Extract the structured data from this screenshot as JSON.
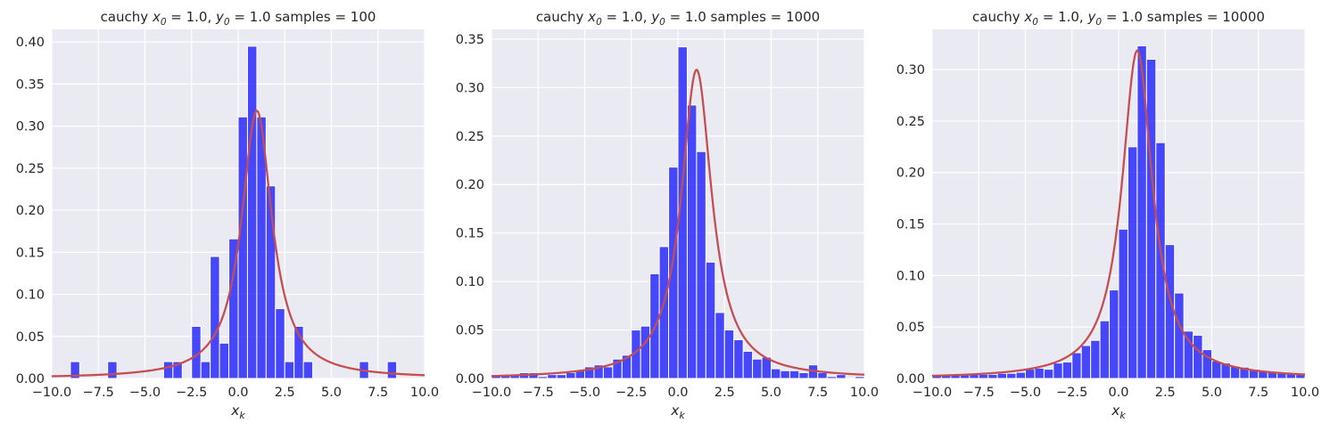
{
  "colors": {
    "bar": "#0000ff",
    "curve": "#c44e52",
    "axes_bg": "#eaeaf2",
    "grid": "#ffffff"
  },
  "chart_data": [
    {
      "type": "bar",
      "title": {
        "prefix": "cauchy ",
        "x0_label": "x",
        "x0_sub": "0",
        "x0_value": " = 1.0, ",
        "y0_label": "y",
        "y0_sub": "0",
        "y0_value": " = 1.0  samples = 100"
      },
      "xlabel": {
        "base": "x",
        "sub": "k"
      },
      "xlim": [
        -10,
        10
      ],
      "ylim": [
        0,
        0.415
      ],
      "xticks": [
        -10,
        -7.5,
        -5,
        -2.5,
        0,
        2.5,
        5,
        7.5,
        10
      ],
      "xtick_labels": [
        "−10.0",
        "−7.5",
        "−5.0",
        "−2.5",
        "0.0",
        "2.5",
        "5.0",
        "7.5",
        "10.0"
      ],
      "yticks": [
        0,
        0.05,
        0.1,
        0.15,
        0.2,
        0.25,
        0.3,
        0.35,
        0.4
      ],
      "ytick_labels": [
        "0.00",
        "0.05",
        "0.10",
        "0.15",
        "0.20",
        "0.25",
        "0.30",
        "0.35",
        "0.40"
      ],
      "bin_width": 0.5,
      "bin_starts": [
        -9,
        -7,
        -4,
        -3.5,
        -2.5,
        -2,
        -1.5,
        -1,
        -0.5,
        0,
        0.5,
        1,
        1.5,
        2,
        2.5,
        3,
        3.5,
        6.5,
        8
      ],
      "values": [
        0.02,
        0.02,
        0.02,
        0.02,
        0.062,
        0.02,
        0.145,
        0.042,
        0.166,
        0.311,
        0.395,
        0.311,
        0.229,
        0.083,
        0.02,
        0.062,
        0.02,
        0.02,
        0.02
      ],
      "curve": {
        "x0": 1.0,
        "y0": 1.0
      }
    },
    {
      "type": "bar",
      "title": {
        "prefix": "cauchy ",
        "x0_label": "x",
        "x0_sub": "0",
        "x0_value": " = 1.0, ",
        "y0_label": "y",
        "y0_sub": "0",
        "y0_value": " = 1.0  samples = 1000"
      },
      "xlabel": {
        "base": "x",
        "sub": "k"
      },
      "xlim": [
        -10,
        10
      ],
      "ylim": [
        0,
        0.36
      ],
      "xticks": [
        -10,
        -7.5,
        -5,
        -2.5,
        0,
        2.5,
        5,
        7.5,
        10
      ],
      "xtick_labels": [
        "−10.0",
        "−7.5",
        "−5.0",
        "−2.5",
        "0.0",
        "2.5",
        "5.0",
        "7.5",
        "10.0"
      ],
      "yticks": [
        0,
        0.05,
        0.1,
        0.15,
        0.2,
        0.25,
        0.3,
        0.35
      ],
      "ytick_labels": [
        "0.00",
        "0.05",
        "0.10",
        "0.15",
        "0.20",
        "0.25",
        "0.30",
        "0.35"
      ],
      "bin_width": 0.5,
      "bin_starts": [
        -10,
        -9.5,
        -9,
        -8.5,
        -8,
        -7.5,
        -7,
        -6.5,
        -6,
        -5.5,
        -5,
        -4.5,
        -4,
        -3.5,
        -3,
        -2.5,
        -2,
        -1.5,
        -1,
        -0.5,
        0,
        0.5,
        1,
        1.5,
        2,
        2.5,
        3,
        3.5,
        4,
        4.5,
        5,
        5.5,
        6,
        6.5,
        7,
        7.5,
        8,
        8.5,
        9,
        9.5
      ],
      "values": [
        0.004,
        0.004,
        0.004,
        0.006,
        0.006,
        0.002,
        0.004,
        0.004,
        0.006,
        0.008,
        0.012,
        0.014,
        0.012,
        0.02,
        0.024,
        0.05,
        0.054,
        0.108,
        0.136,
        0.218,
        0.342,
        0.282,
        0.234,
        0.12,
        0.068,
        0.05,
        0.04,
        0.028,
        0.02,
        0.022,
        0.01,
        0.008,
        0.008,
        0.006,
        0.014,
        0.006,
        0.002,
        0.004,
        0,
        0.002
      ],
      "curve": {
        "x0": 1.0,
        "y0": 1.0
      }
    },
    {
      "type": "bar",
      "title": {
        "prefix": "cauchy ",
        "x0_label": "x",
        "x0_sub": "0",
        "x0_value": " = 1.0, ",
        "y0_label": "y",
        "y0_sub": "0",
        "y0_value": " = 1.0  samples = 10000"
      },
      "xlabel": {
        "base": "x",
        "sub": "k"
      },
      "xlim": [
        -10,
        10
      ],
      "ylim": [
        0,
        0.339
      ],
      "xticks": [
        -10,
        -7.5,
        -5,
        -2.5,
        0,
        2.5,
        5,
        7.5,
        10
      ],
      "xtick_labels": [
        "−10.0",
        "−7.5",
        "−5.0",
        "−2.5",
        "0.0",
        "2.5",
        "5.0",
        "7.5",
        "10.0"
      ],
      "yticks": [
        0,
        0.05,
        0.1,
        0.15,
        0.2,
        0.25,
        0.3
      ],
      "ytick_labels": [
        "0.00",
        "0.05",
        "0.10",
        "0.15",
        "0.20",
        "0.25",
        "0.30"
      ],
      "bin_width": 0.5,
      "bin_starts": [
        -10,
        -9.5,
        -9,
        -8.5,
        -8,
        -7.5,
        -7,
        -6.5,
        -6,
        -5.5,
        -5,
        -4.5,
        -4,
        -3.5,
        -3,
        -2.5,
        -2,
        -1.5,
        -1,
        -0.5,
        0,
        0.5,
        1,
        1.5,
        2,
        2.5,
        3,
        3.5,
        4,
        4.5,
        5,
        5.5,
        6,
        6.5,
        7,
        7.5,
        8,
        8.5,
        9,
        9.5
      ],
      "values": [
        0.003,
        0.003,
        0.003,
        0.004,
        0.004,
        0.004,
        0.004,
        0.005,
        0.005,
        0.006,
        0.009,
        0.01,
        0.009,
        0.015,
        0.016,
        0.025,
        0.032,
        0.037,
        0.056,
        0.086,
        0.145,
        0.225,
        0.323,
        0.31,
        0.229,
        0.13,
        0.083,
        0.046,
        0.042,
        0.028,
        0.017,
        0.015,
        0.012,
        0.011,
        0.009,
        0.007,
        0.006,
        0.005,
        0.005,
        0.004
      ],
      "curve": {
        "x0": 1.0,
        "y0": 1.0
      }
    }
  ]
}
